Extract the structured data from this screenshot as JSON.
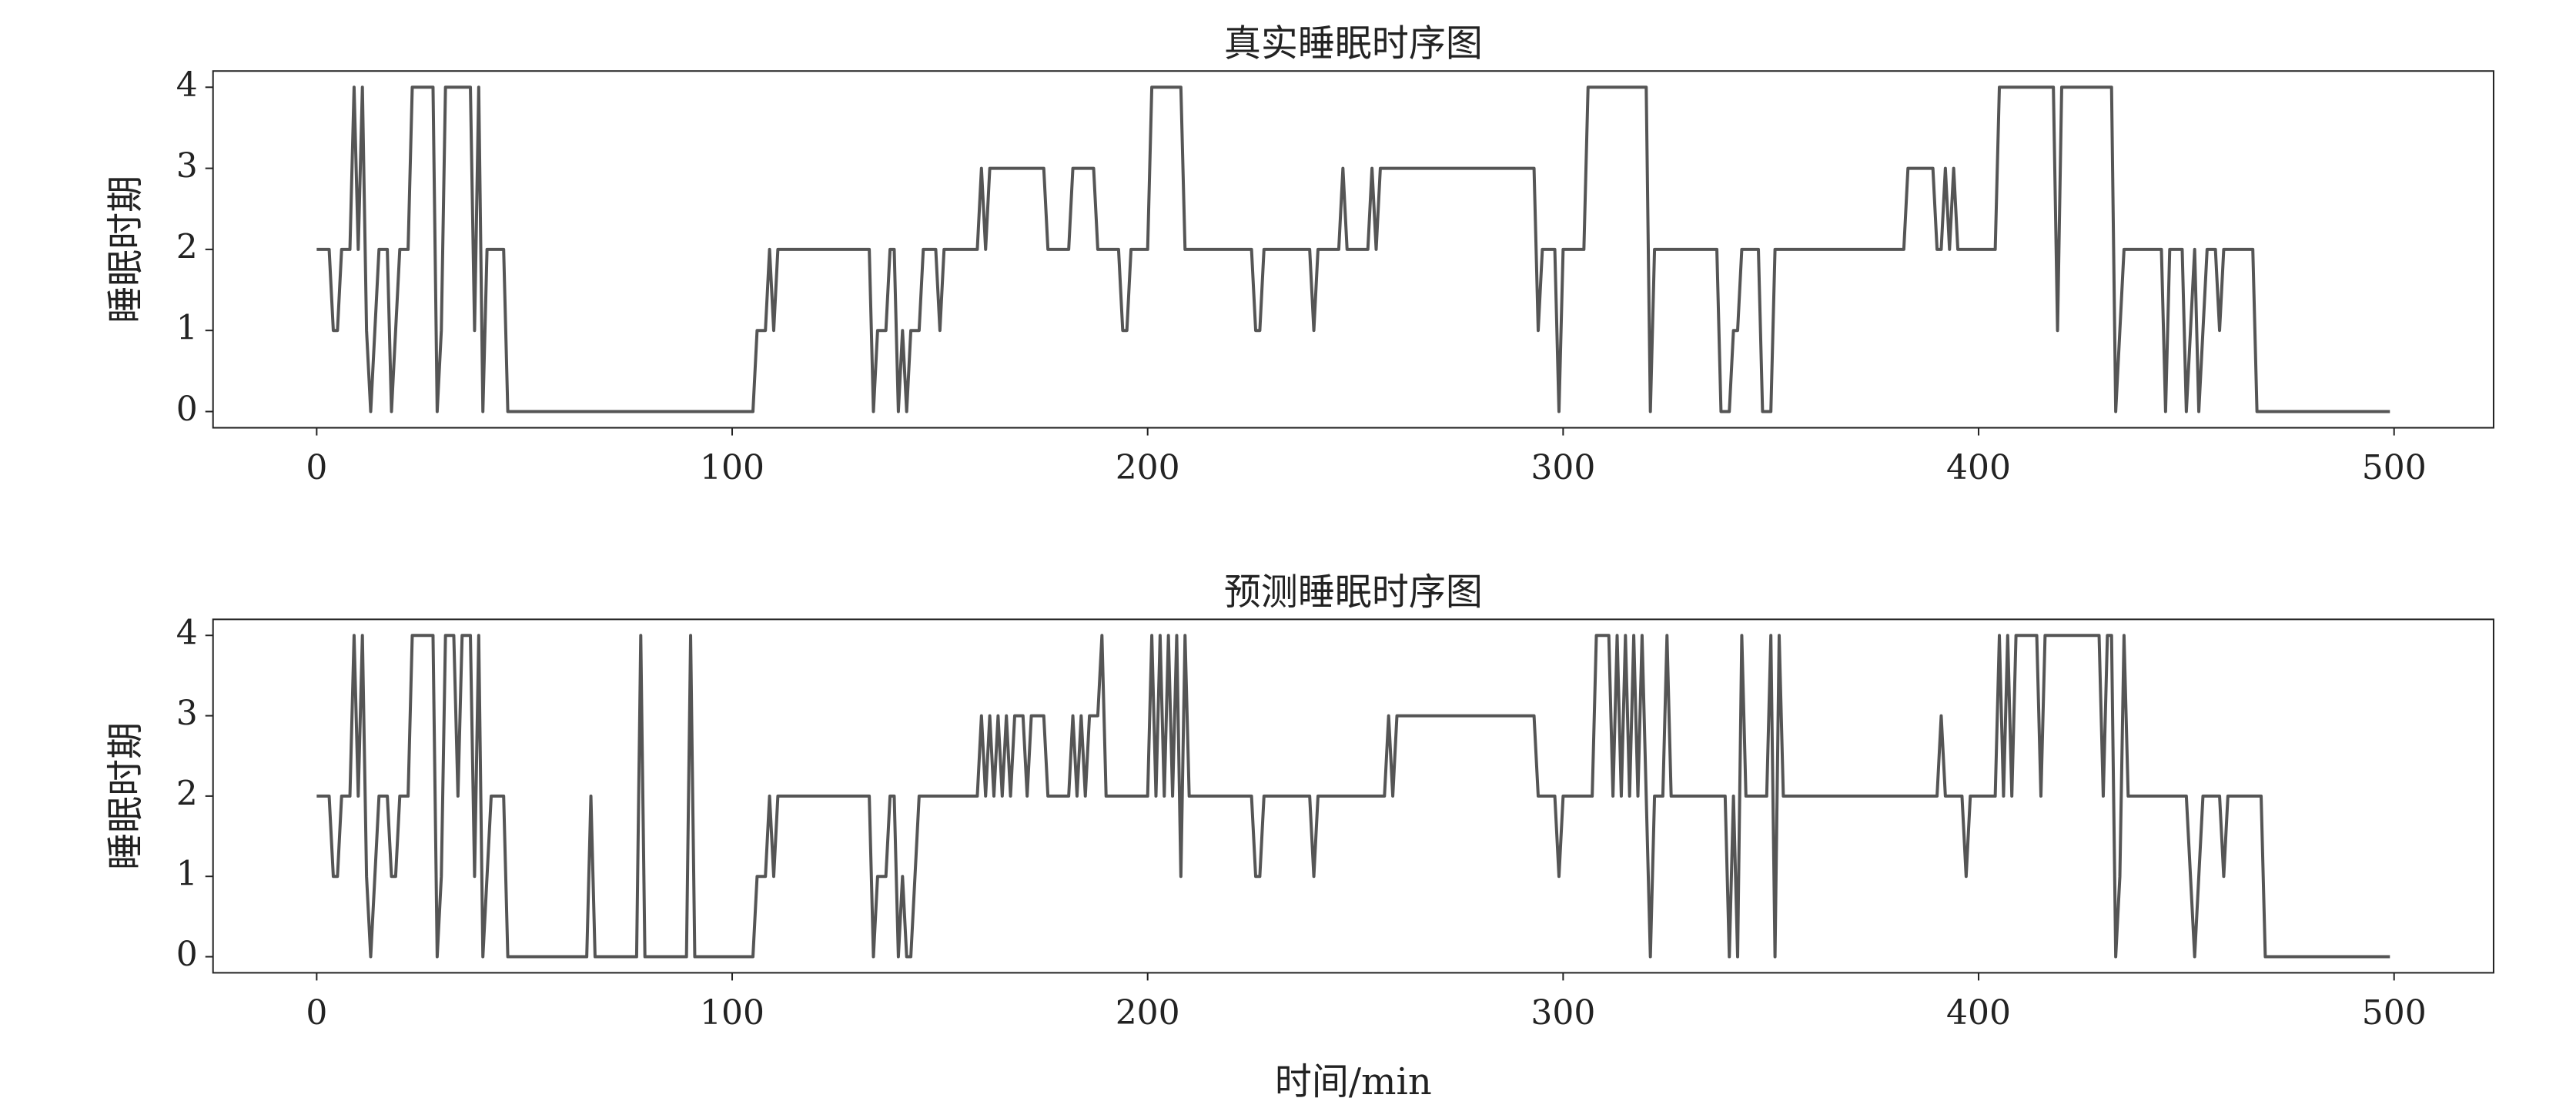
{
  "chart_data": [
    {
      "type": "line",
      "title": "真实睡眠时序图",
      "ylabel": "睡眠时期",
      "xlim": [
        -24.95,
        523.95
      ],
      "xticks": [
        0,
        100,
        200,
        300,
        400,
        500
      ],
      "ylim": [
        -0.2,
        4.2
      ],
      "yticks": [
        0,
        1,
        2,
        3,
        4
      ],
      "series": [
        {
          "color": "#555555",
          "x": [
            0,
            3,
            4,
            5,
            6,
            8,
            9,
            10,
            11,
            12,
            13,
            14,
            15,
            17,
            18,
            19,
            20,
            22,
            23,
            28,
            29,
            30,
            31,
            37,
            38,
            39,
            40,
            41,
            45,
            46,
            105,
            106,
            108,
            109,
            110,
            111,
            133,
            134,
            135,
            137,
            138,
            139,
            140,
            141,
            142,
            143,
            145,
            146,
            149,
            150,
            151,
            159,
            160,
            161,
            162,
            175,
            176,
            181,
            182,
            187,
            188,
            193,
            194,
            195,
            196,
            200,
            201,
            208,
            209,
            225,
            226,
            227,
            228,
            239,
            240,
            241,
            246,
            247,
            248,
            253,
            254,
            255,
            256,
            293,
            294,
            295,
            298,
            299,
            300,
            305,
            306,
            320,
            321,
            322,
            337,
            338,
            340,
            341,
            342,
            343,
            347,
            348,
            350,
            351,
            382,
            383,
            389,
            390,
            391,
            392,
            393,
            394,
            395,
            404,
            405,
            418,
            419,
            420,
            432,
            433,
            434,
            435,
            444,
            445,
            446,
            449,
            450,
            451,
            452,
            453,
            454,
            455,
            457,
            458,
            459,
            466,
            467,
            499
          ],
          "values": [
            2,
            2,
            1,
            1,
            2,
            2,
            4,
            2,
            4,
            1,
            0,
            1,
            2,
            2,
            0,
            1,
            2,
            2,
            4,
            4,
            0,
            1,
            4,
            4,
            1,
            4,
            0,
            2,
            2,
            0,
            0,
            1,
            1,
            2,
            1,
            2,
            2,
            0,
            1,
            1,
            2,
            2,
            0,
            1,
            0,
            1,
            1,
            2,
            2,
            1,
            2,
            2,
            3,
            2,
            3,
            3,
            2,
            2,
            3,
            3,
            2,
            2,
            1,
            1,
            2,
            2,
            4,
            4,
            2,
            2,
            1,
            1,
            2,
            2,
            1,
            2,
            2,
            3,
            2,
            2,
            3,
            2,
            3,
            3,
            1,
            2,
            2,
            0,
            2,
            2,
            4,
            4,
            0,
            2,
            2,
            0,
            0,
            1,
            1,
            2,
            2,
            0,
            0,
            2,
            2,
            3,
            3,
            2,
            2,
            3,
            2,
            3,
            2,
            2,
            4,
            4,
            1,
            4,
            4,
            0,
            1,
            2,
            2,
            0,
            2,
            2,
            0,
            1,
            2,
            0,
            1,
            2,
            2,
            1,
            2,
            2,
            0,
            0
          ]
        }
      ]
    },
    {
      "type": "line",
      "title": "预测睡眠时序图",
      "ylabel": "睡眠时期",
      "xlabel": "时间/min",
      "xlim": [
        -24.95,
        523.95
      ],
      "xticks": [
        0,
        100,
        200,
        300,
        400,
        500
      ],
      "ylim": [
        -0.2,
        4.2
      ],
      "yticks": [
        0,
        1,
        2,
        3,
        4
      ],
      "series": [
        {
          "color": "#555555",
          "x": [
            0,
            3,
            4,
            5,
            6,
            8,
            9,
            10,
            11,
            12,
            13,
            14,
            15,
            17,
            18,
            19,
            20,
            22,
            23,
            28,
            29,
            30,
            31,
            33,
            34,
            35,
            37,
            38,
            39,
            40,
            41,
            42,
            45,
            46,
            65,
            66,
            67,
            77,
            78,
            79,
            89,
            90,
            91,
            105,
            106,
            108,
            109,
            110,
            111,
            133,
            134,
            135,
            137,
            138,
            139,
            140,
            141,
            142,
            143,
            144,
            145,
            159,
            160,
            161,
            162,
            163,
            164,
            165,
            166,
            167,
            168,
            170,
            171,
            172,
            175,
            176,
            181,
            182,
            183,
            184,
            185,
            186,
            188,
            189,
            190,
            200,
            201,
            202,
            203,
            204,
            205,
            206,
            207,
            208,
            209,
            210,
            225,
            226,
            227,
            228,
            239,
            240,
            241,
            257,
            258,
            259,
            260,
            293,
            294,
            298,
            299,
            300,
            307,
            308,
            311,
            312,
            313,
            314,
            315,
            316,
            317,
            318,
            319,
            320,
            321,
            322,
            324,
            325,
            326,
            339,
            340,
            341,
            342,
            343,
            344,
            349,
            350,
            351,
            352,
            353,
            390,
            391,
            392,
            396,
            397,
            398,
            404,
            405,
            406,
            407,
            408,
            409,
            414,
            415,
            416,
            429,
            430,
            431,
            432,
            433,
            434,
            435,
            436,
            450,
            451,
            452,
            453,
            454,
            458,
            459,
            460,
            468,
            469,
            499
          ],
          "values": [
            2,
            2,
            1,
            1,
            2,
            2,
            4,
            2,
            4,
            1,
            0,
            1,
            2,
            2,
            1,
            1,
            2,
            2,
            4,
            4,
            0,
            1,
            4,
            4,
            2,
            4,
            4,
            1,
            4,
            0,
            1,
            2,
            2,
            0,
            0,
            2,
            0,
            0,
            4,
            0,
            0,
            4,
            0,
            0,
            1,
            1,
            2,
            1,
            2,
            2,
            0,
            1,
            1,
            2,
            2,
            0,
            1,
            0,
            0,
            1,
            2,
            2,
            3,
            2,
            3,
            2,
            3,
            2,
            3,
            2,
            3,
            3,
            2,
            3,
            3,
            2,
            2,
            3,
            2,
            3,
            2,
            3,
            3,
            4,
            2,
            2,
            4,
            2,
            4,
            2,
            4,
            2,
            4,
            1,
            4,
            2,
            2,
            1,
            1,
            2,
            2,
            1,
            2,
            2,
            3,
            2,
            3,
            3,
            2,
            2,
            1,
            2,
            2,
            4,
            4,
            2,
            4,
            2,
            4,
            2,
            4,
            2,
            4,
            2,
            0,
            2,
            2,
            4,
            2,
            2,
            0,
            2,
            0,
            4,
            2,
            2,
            4,
            0,
            4,
            2,
            2,
            3,
            2,
            2,
            1,
            2,
            2,
            4,
            2,
            4,
            2,
            4,
            4,
            2,
            4,
            4,
            2,
            4,
            4,
            0,
            1,
            4,
            2,
            2,
            1,
            0,
            1,
            2,
            2,
            1,
            2,
            2,
            0,
            0
          ]
        }
      ]
    }
  ]
}
